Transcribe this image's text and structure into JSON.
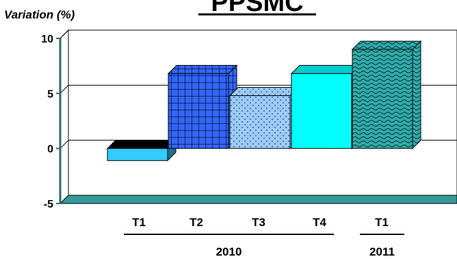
{
  "chart_data": {
    "type": "bar",
    "title": "PPSMC",
    "ylabel": "Variation (%)",
    "xlabel": "",
    "ylim": [
      -5,
      10
    ],
    "yticks": [
      10,
      5,
      0,
      -5
    ],
    "ytick_labels": [
      "10",
      "5",
      "0",
      "-5"
    ],
    "categories": [
      "T1",
      "T2",
      "T3",
      "T4",
      "T1"
    ],
    "values": [
      -1.1,
      6.8,
      4.8,
      6.8,
      9.0
    ],
    "groups": [
      {
        "label": "2010",
        "categories": [
          "T1",
          "T2",
          "T3",
          "T4"
        ]
      },
      {
        "label": "2011",
        "categories": [
          "T1"
        ]
      }
    ],
    "bar_styles": [
      {
        "fill": "#33ccff",
        "pattern": "solid"
      },
      {
        "fill": "#3366ff",
        "pattern": "grid"
      },
      {
        "fill": "#99ccff",
        "pattern": "dots"
      },
      {
        "fill": "#00ffff",
        "pattern": "solid"
      },
      {
        "fill": "#33aaaa",
        "pattern": "waves"
      }
    ],
    "grid": true,
    "colors": {
      "axis": "#336666",
      "floor": "#339999",
      "bar_edge": "#000000"
    }
  }
}
